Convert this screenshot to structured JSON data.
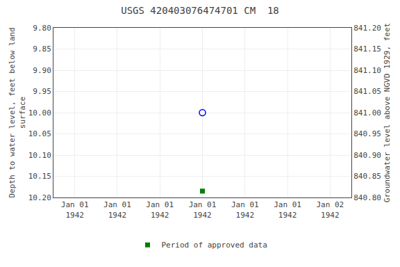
{
  "chart_data": {
    "type": "scatter",
    "title": "USGS 420403076474701 CM  18",
    "y_label": "Depth to water level, feet below land\nsurface",
    "y2_label": "Groundwater level above NGVD 1929, feet",
    "categories": [
      "Jan 01\n1942",
      "Jan 01\n1942",
      "Jan 01\n1942",
      "Jan 01\n1942",
      "Jan 01\n1942",
      "Jan 01\n1942",
      "Jan 02\n1942"
    ],
    "series": [
      {
        "color": "#0000ff",
        "marker": "circle-open",
        "values": [
          null,
          null,
          null,
          10.0,
          null,
          null,
          null
        ]
      },
      {
        "name": "Period of approved data",
        "color": "#008000",
        "marker": "square",
        "values": [
          null,
          null,
          null,
          10.185,
          null,
          null,
          null
        ]
      }
    ],
    "ylim": [
      10.2,
      9.8
    ],
    "yticks": [
      {
        "value": 9.8,
        "label": "9.80"
      },
      {
        "value": 9.85,
        "label": "9.85"
      },
      {
        "value": 9.9,
        "label": "9.90"
      },
      {
        "value": 9.95,
        "label": "9.95"
      },
      {
        "value": 10.0,
        "label": "10.00"
      },
      {
        "value": 10.05,
        "label": "10.05"
      },
      {
        "value": 10.1,
        "label": "10.10"
      },
      {
        "value": 10.15,
        "label": "10.15"
      },
      {
        "value": 10.2,
        "label": "10.20"
      }
    ],
    "y2lim": [
      840.8,
      841.2
    ],
    "y2ticks": [
      {
        "value": 840.8,
        "label": "840.80"
      },
      {
        "value": 840.85,
        "label": "840.85"
      },
      {
        "value": 840.9,
        "label": "840.90"
      },
      {
        "value": 840.95,
        "label": "840.95"
      },
      {
        "value": 841.0,
        "label": "841.00"
      },
      {
        "value": 841.05,
        "label": "841.05"
      },
      {
        "value": 841.1,
        "label": "841.10"
      },
      {
        "value": 841.15,
        "label": "841.15"
      },
      {
        "value": 841.2,
        "label": "841.20"
      }
    ],
    "grid": true,
    "legend": "bottom"
  }
}
